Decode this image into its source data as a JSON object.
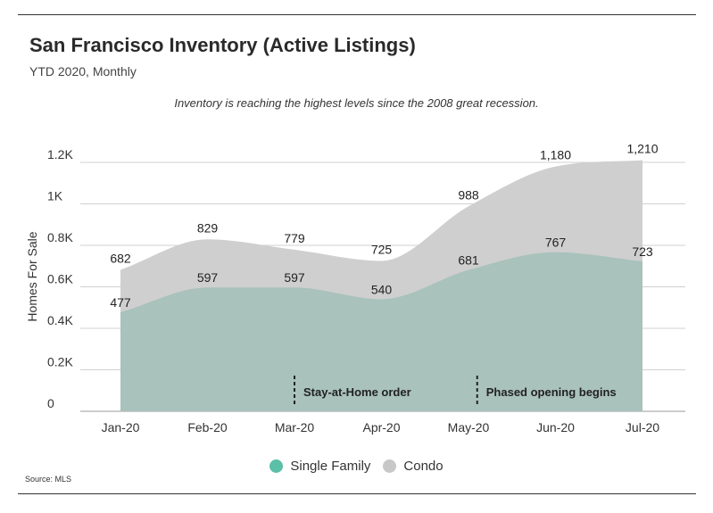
{
  "header": {
    "title": "San Francisco Inventory (Active Listings)",
    "subtitle": "YTD 2020, Monthly",
    "annotation": "Inventory is reaching the highest levels since the 2008 great recession."
  },
  "footer": {
    "source": "Source: MLS"
  },
  "colors": {
    "single_family": "#a9c2bb",
    "condo": "#cfcfcf",
    "single_family_legend": "#5cbfa8",
    "condo_legend": "#c8c8c8",
    "grid": "#d0d0d0",
    "event": "#222222"
  },
  "chart_data": {
    "type": "area",
    "title": "San Francisco Inventory (Active Listings)",
    "xlabel": "",
    "ylabel": "Homes For Sale",
    "ylim": [
      0,
      1200
    ],
    "yticks": [
      {
        "value": 0,
        "label": "0"
      },
      {
        "value": 200,
        "label": "0.2K"
      },
      {
        "value": 400,
        "label": "0.4K"
      },
      {
        "value": 600,
        "label": "0.6K"
      },
      {
        "value": 800,
        "label": "0.8K"
      },
      {
        "value": 1000,
        "label": "1K"
      },
      {
        "value": 1200,
        "label": "1.2K"
      }
    ],
    "categories": [
      "Jan-20",
      "Feb-20",
      "Mar-20",
      "Apr-20",
      "May-20",
      "Jun-20",
      "Jul-20"
    ],
    "series": [
      {
        "name": "Condo",
        "values": [
          682,
          829,
          779,
          725,
          988,
          1180,
          1210
        ],
        "labels": [
          "682",
          "829",
          "779",
          "725",
          "988",
          "1,180",
          "1,210"
        ]
      },
      {
        "name": "Single Family",
        "values": [
          477,
          597,
          597,
          540,
          681,
          767,
          723
        ],
        "labels": [
          "477",
          "597",
          "597",
          "540",
          "681",
          "767",
          "723"
        ]
      }
    ],
    "events": [
      {
        "label": "Stay-at-Home order",
        "x": 2.0
      },
      {
        "label": "Phased opening begins",
        "x": 4.1
      }
    ],
    "legend": [
      "Single Family",
      "Condo"
    ],
    "legend_position": "bottom-center",
    "grid": true
  }
}
